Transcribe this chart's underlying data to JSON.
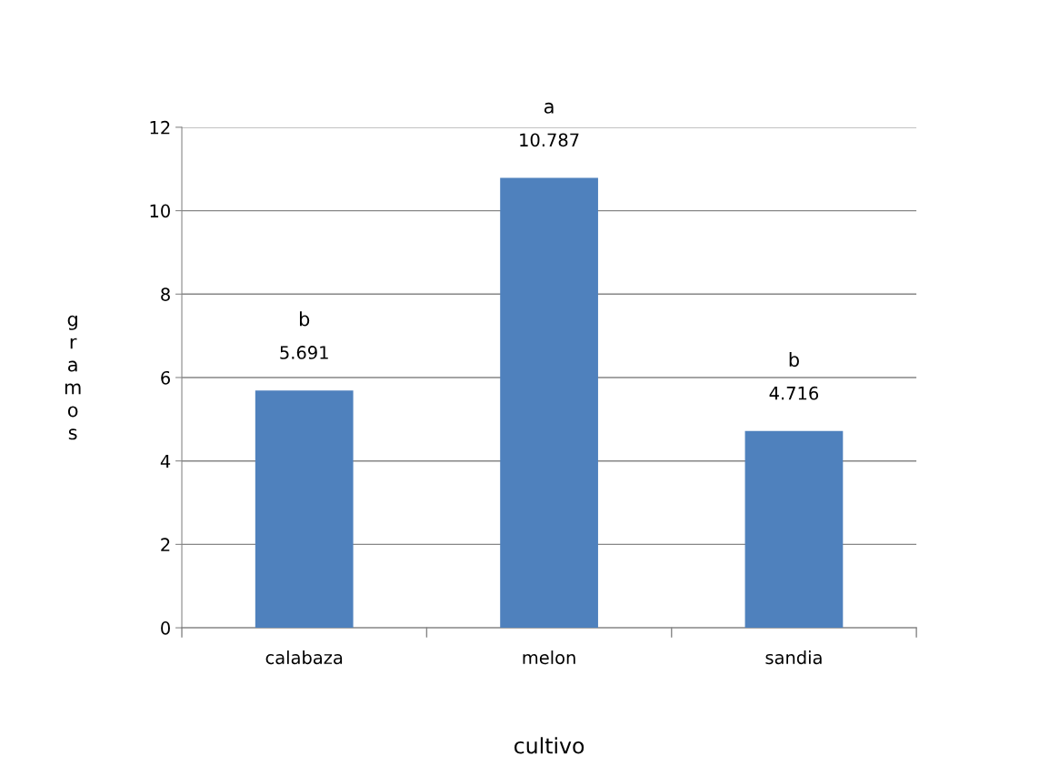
{
  "chart_data": {
    "type": "bar",
    "xlabel": "cultivo",
    "ylabel": "gramos",
    "categories": [
      "calabaza",
      "melon",
      "sandia"
    ],
    "values": [
      5.691,
      10.787,
      4.716
    ],
    "color": "#4f81bd",
    "ylim": [
      0,
      12
    ],
    "yticks": [
      0,
      2,
      4,
      6,
      8,
      10,
      12
    ],
    "grid": "y",
    "legend": false,
    "data_labels": true,
    "annotations": [
      "b",
      "a",
      "b"
    ]
  }
}
